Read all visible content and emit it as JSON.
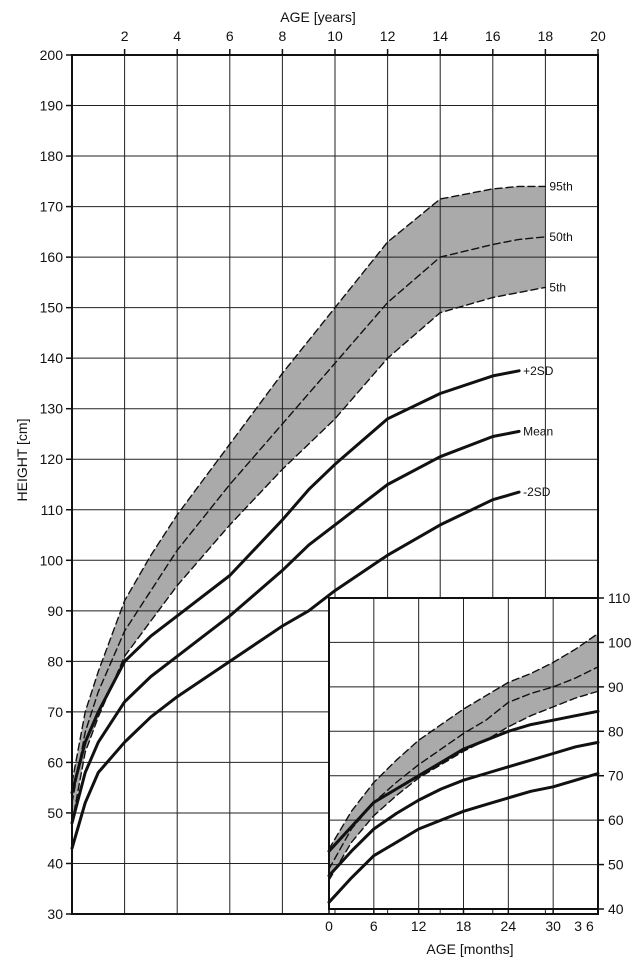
{
  "chart_data": [
    {
      "type": "line",
      "xlabel_top": "AGE [years]",
      "ylabel": "HEIGHT [cm]",
      "xlim": [
        0,
        20
      ],
      "ylim": [
        30,
        200
      ],
      "x_ticks": [
        2,
        4,
        6,
        8,
        10,
        12,
        14,
        16,
        18,
        20
      ],
      "y_ticks": [
        30,
        40,
        50,
        60,
        70,
        80,
        90,
        100,
        110,
        120,
        130,
        140,
        150,
        160,
        170,
        180,
        190,
        200
      ],
      "grid": true,
      "band": {
        "lower": "5th",
        "upper": "95th",
        "fill": "#aaaaaa"
      },
      "series": [
        {
          "name": "95th",
          "style": "dashed",
          "x": [
            0,
            0.5,
            1,
            2,
            3,
            4,
            6,
            8,
            10,
            12,
            14,
            16,
            17,
            18
          ],
          "y": [
            56,
            70,
            78,
            92,
            101,
            109,
            123,
            137,
            150,
            163,
            171.5,
            173.5,
            174,
            174
          ]
        },
        {
          "name": "50th",
          "style": "dashed",
          "x": [
            0,
            0.5,
            1,
            2,
            3,
            4,
            6,
            8,
            10,
            12,
            14,
            16,
            17,
            18
          ],
          "y": [
            52,
            66,
            74,
            86,
            94,
            102,
            115,
            127,
            139,
            151,
            160,
            162.5,
            163.5,
            164
          ]
        },
        {
          "name": "5th",
          "style": "dashed",
          "x": [
            0,
            0.5,
            1,
            2,
            3,
            4,
            6,
            8,
            10,
            12,
            14,
            16,
            17,
            18
          ],
          "y": [
            48,
            62,
            69,
            81,
            88,
            95,
            107,
            118,
            128,
            140,
            149,
            152,
            153,
            154
          ]
        },
        {
          "name": "+2SD",
          "style": "solid",
          "x": [
            0,
            0.5,
            1,
            2,
            3,
            4,
            6,
            8,
            9,
            10,
            12,
            14,
            16,
            17
          ],
          "y": [
            54,
            64,
            70,
            80,
            85,
            89,
            97,
            108,
            114,
            119,
            128,
            133,
            136.5,
            137.5
          ]
        },
        {
          "name": "Mean",
          "style": "solid",
          "x": [
            0,
            0.5,
            1,
            2,
            3,
            4,
            6,
            8,
            9,
            10,
            12,
            14,
            16,
            17
          ],
          "y": [
            48,
            58,
            64,
            72,
            77,
            81,
            89,
            98,
            103,
            107,
            115,
            120.5,
            124.5,
            125.5
          ]
        },
        {
          "name": "-2SD",
          "style": "solid",
          "x": [
            0,
            0.5,
            1,
            2,
            3,
            4,
            6,
            8,
            9,
            10,
            12,
            14,
            16,
            17
          ],
          "y": [
            43,
            52,
            58,
            64,
            69,
            73,
            80,
            87,
            90,
            94,
            101,
            107,
            112,
            113.5
          ]
        }
      ]
    },
    {
      "type": "line",
      "xlabel": "AGE [months]",
      "xlim": [
        0,
        36
      ],
      "ylim": [
        40,
        110
      ],
      "x_ticks": [
        0,
        6,
        12,
        18,
        24,
        30,
        36
      ],
      "x_tick_labels": [
        "0",
        "6",
        "12",
        "18",
        "24",
        "30",
        "3 6"
      ],
      "y_ticks": [
        40,
        50,
        60,
        70,
        80,
        90,
        100,
        110
      ],
      "grid": true,
      "band": {
        "lower": "5th",
        "upper": "95th",
        "fill": "#aaaaaa"
      },
      "series": [
        {
          "name": "95th",
          "style": "dashed",
          "x": [
            0,
            3,
            6,
            9,
            12,
            15,
            18,
            21,
            24,
            27,
            30,
            33,
            36
          ],
          "y": [
            53.5,
            62,
            68.5,
            73.5,
            78,
            81.5,
            85,
            88,
            91,
            93,
            95.5,
            98.5,
            102
          ]
        },
        {
          "name": "50th",
          "style": "dashed",
          "x": [
            0,
            3,
            6,
            9,
            12,
            15,
            18,
            21,
            24,
            27,
            30,
            33,
            36
          ],
          "y": [
            49,
            58,
            64,
            68.5,
            72.5,
            76,
            79.5,
            82.5,
            86.5,
            88.5,
            90,
            92,
            94.5
          ]
        },
        {
          "name": "5th",
          "style": "dashed",
          "x": [
            0,
            3,
            6,
            9,
            12,
            15,
            18,
            21,
            24,
            27,
            30,
            33,
            36
          ],
          "y": [
            46.5,
            55,
            61,
            65.5,
            69.5,
            72.5,
            75.5,
            78,
            81,
            83.5,
            85.5,
            87.5,
            89
          ]
        },
        {
          "name": "+2SD",
          "style": "solid",
          "x": [
            0,
            3,
            6,
            9,
            12,
            15,
            18,
            21,
            24,
            27,
            30,
            33,
            36
          ],
          "y": [
            53,
            58.5,
            64,
            67,
            70,
            73,
            76,
            78,
            80,
            81.5,
            82.5,
            83.5,
            84.5
          ]
        },
        {
          "name": "Mean",
          "style": "solid",
          "x": [
            0,
            3,
            6,
            9,
            12,
            15,
            18,
            21,
            24,
            27,
            30,
            33,
            36
          ],
          "y": [
            47.5,
            53,
            58,
            61.5,
            64.5,
            67,
            69,
            70.5,
            72,
            73.5,
            75,
            76.5,
            77.5
          ]
        },
        {
          "name": "-2SD",
          "style": "solid",
          "x": [
            0,
            3,
            6,
            9,
            12,
            15,
            18,
            21,
            24,
            27,
            30,
            33,
            36
          ],
          "y": [
            41.5,
            47,
            52,
            55,
            58,
            60,
            62,
            63.5,
            65,
            66.5,
            67.5,
            69,
            70.5
          ]
        }
      ]
    }
  ]
}
